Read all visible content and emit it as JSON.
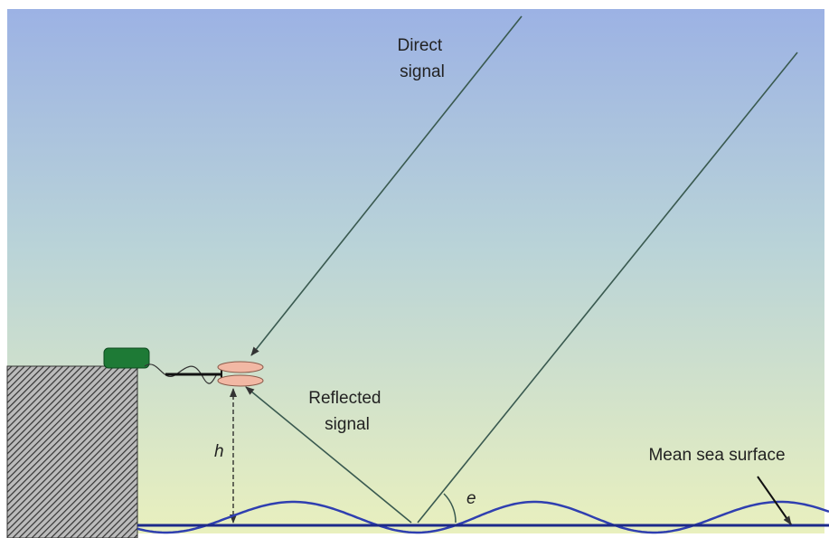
{
  "labels": {
    "direct_signal": [
      "Direct",
      "signal"
    ],
    "reflected_signal": [
      "Reflected",
      "signal"
    ],
    "height": "h",
    "elevation_angle": "e",
    "mean_sea_surface": "Mean sea surface"
  }
}
